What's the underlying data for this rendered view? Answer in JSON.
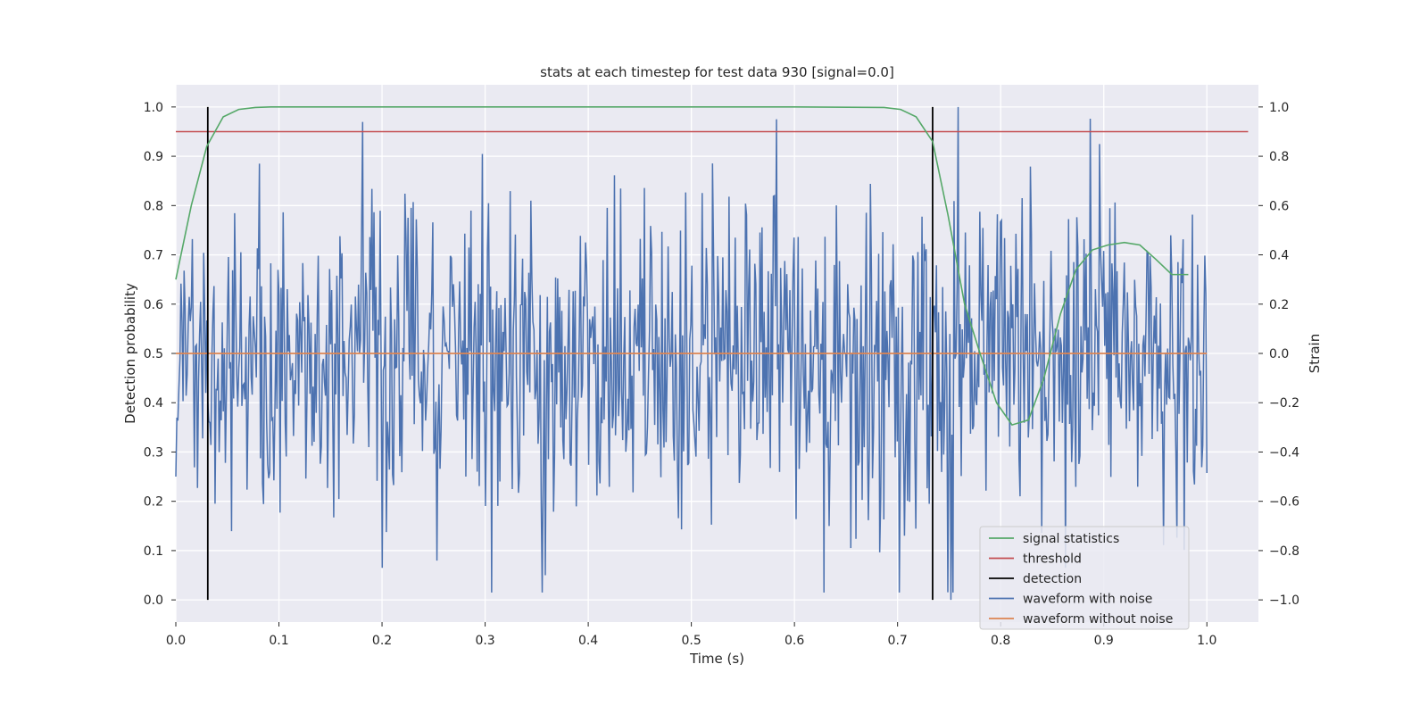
{
  "chart_data": {
    "type": "line",
    "title": "stats at each timestep for test data 930 [signal=0.0]",
    "xlabel": "Time (s)",
    "ylabel": "Detection probability",
    "y2label": "Strain",
    "xlim": [
      0.0,
      1.05
    ],
    "ylim": [
      -0.045,
      1.045
    ],
    "y2lim": [
      -1.09,
      1.09
    ],
    "xticks": [
      "0.0",
      "0.1",
      "0.2",
      "0.3",
      "0.4",
      "0.5",
      "0.6",
      "0.7",
      "0.8",
      "0.9",
      "1.0"
    ],
    "yticks": [
      "0.0",
      "0.1",
      "0.2",
      "0.3",
      "0.4",
      "0.5",
      "0.6",
      "0.7",
      "0.8",
      "0.9",
      "1.0"
    ],
    "y2ticks": [
      "−1.0",
      "−0.8",
      "−0.6",
      "−0.4",
      "−0.2",
      "0.0",
      "0.2",
      "0.4",
      "0.6",
      "0.8",
      "1.0"
    ],
    "grid": true,
    "legend_position": "lower-right",
    "series": [
      {
        "name": "signal statistics",
        "color": "#55a868",
        "axis": "left",
        "x": [
          0.0,
          0.015,
          0.03,
          0.046,
          0.061,
          0.077,
          0.092,
          0.108,
          0.2,
          0.3,
          0.4,
          0.5,
          0.6,
          0.687,
          0.703,
          0.718,
          0.734,
          0.749,
          0.765,
          0.78,
          0.796,
          0.811,
          0.827,
          0.842,
          0.858,
          0.873,
          0.889,
          0.904,
          0.92,
          0.935,
          0.951,
          0.966,
          0.982
        ],
        "y": [
          0.65,
          0.8,
          0.92,
          0.98,
          0.995,
          0.999,
          1.0,
          1.0,
          1.0,
          1.0,
          1.0,
          1.0,
          1.0,
          0.999,
          0.995,
          0.98,
          0.93,
          0.78,
          0.6,
          0.5,
          0.4,
          0.355,
          0.365,
          0.45,
          0.58,
          0.67,
          0.71,
          0.72,
          0.725,
          0.72,
          0.69,
          0.66,
          0.66
        ]
      },
      {
        "name": "threshold",
        "color": "#c44e52",
        "axis": "left",
        "x": [
          0.0,
          1.04
        ],
        "y": [
          0.95,
          0.95
        ]
      },
      {
        "name": "detection",
        "color": "#000000",
        "axis": "left",
        "x": [
          0.031,
          0.734
        ],
        "y": [
          1.0,
          1.0
        ]
      },
      {
        "name": "waveform with noise",
        "color": "#4c72b0",
        "axis": "right",
        "x_range": [
          0.0,
          1.0
        ],
        "points": 1000,
        "value_range": [
          -1.0,
          1.0
        ],
        "description_values": {
          "max": 1.0,
          "min": -1.0
        }
      },
      {
        "name": "waveform without noise",
        "color": "#dd8452",
        "axis": "right",
        "x": [
          0.0,
          1.0
        ],
        "y": [
          0.0,
          0.0
        ]
      }
    ]
  }
}
